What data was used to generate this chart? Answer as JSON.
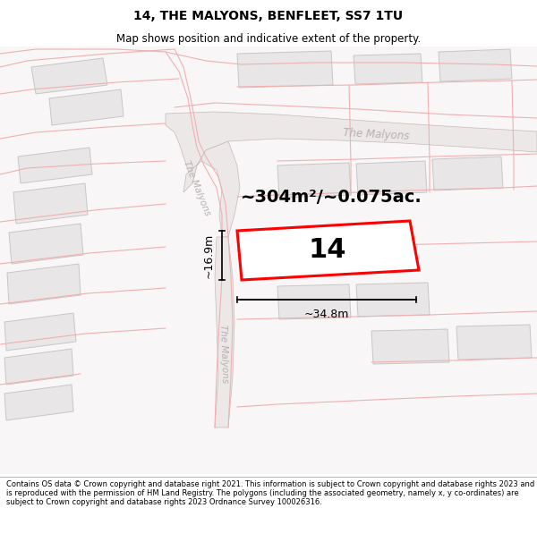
{
  "title": "14, THE MALYONS, BENFLEET, SS7 1TU",
  "subtitle": "Map shows position and indicative extent of the property.",
  "footer": "Contains OS data © Crown copyright and database right 2021. This information is subject to Crown copyright and database rights 2023 and is reproduced with the permission of HM Land Registry. The polygons (including the associated geometry, namely x, y co-ordinates) are subject to Crown copyright and database rights 2023 Ordnance Survey 100026316.",
  "area_label": "~304m²/~0.075ac.",
  "width_label": "~34.8m",
  "height_label": "~16.9m",
  "plot_number": "14",
  "map_bg": "#f9f8f8",
  "plot_fill": "#ffffff",
  "plot_border": "#ff0000",
  "building_fill": "#e8e6e6",
  "building_stroke": "#c8c6c6",
  "road_fill": "#e8c8c8",
  "road_stroke": "#d4a8a8",
  "road_label_color": "#b8b0b0",
  "pink_line_color": "#f0b0b0",
  "dim_line_color": "#000000",
  "title_fontsize": 10,
  "subtitle_fontsize": 8.5,
  "area_fontsize": 14,
  "plot_num_fontsize": 22,
  "dim_fontsize": 9
}
